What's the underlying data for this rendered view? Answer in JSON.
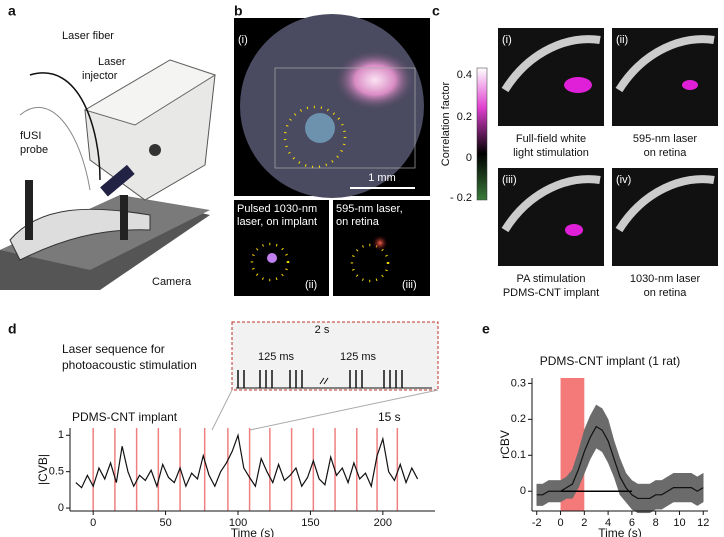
{
  "panel_letters": [
    "a",
    "b",
    "c",
    "d",
    "e"
  ],
  "panel_a": {
    "laser_fiber": "Laser fiber",
    "laser_injector": [
      "Laser",
      "injector"
    ],
    "fusi_probe": [
      "fUSI",
      "probe"
    ],
    "camera": "Camera"
  },
  "panel_b": {
    "i": "(i)",
    "ii": "(ii)",
    "iii": "(iii)",
    "scale": "1 mm",
    "ii_caption": [
      "Pulsed 1030-nm",
      "laser, on implant"
    ],
    "iii_caption": [
      "595-nm laser,",
      "on retina"
    ]
  },
  "panel_c": {
    "colorbar_label": "Correlation factor",
    "colorbar_ticks": [
      "0.4",
      "0.2",
      "0",
      "- 0.2"
    ],
    "images": [
      {
        "tag": "(i)",
        "caption": [
          "Full-field white",
          "light stimulation"
        ]
      },
      {
        "tag": "(ii)",
        "caption": [
          "595-nm laser",
          "on retina"
        ]
      },
      {
        "tag": "(iii)",
        "caption": [
          "PA stimulation",
          "PDMS-CNT implant"
        ]
      },
      {
        "tag": "(iv)",
        "caption": [
          "1030-nm laser",
          "on retina"
        ]
      }
    ]
  },
  "panel_d_inset": {
    "title": [
      "Laser sequence for",
      "photoacoustic stimulation"
    ],
    "gap": "2 s",
    "pulse1": "125 ms",
    "pulse2": "125 ms"
  },
  "chart_data": [
    {
      "type": "line",
      "annotation": "PDMS-CNT implant",
      "interval_label": "15 s",
      "xlabel": "Time (s)",
      "ylabel": "|CVB|",
      "x": [
        -12,
        -8,
        -4,
        0,
        4,
        8,
        12,
        16,
        20,
        24,
        28,
        32,
        36,
        40,
        44,
        48,
        52,
        56,
        60,
        64,
        68,
        72,
        76,
        80,
        84,
        88,
        92,
        96,
        100,
        104,
        108,
        112,
        116,
        120,
        124,
        128,
        132,
        136,
        140,
        144,
        148,
        152,
        156,
        160,
        164,
        168,
        172,
        176,
        180,
        184,
        188,
        192,
        196,
        200,
        204,
        208,
        212,
        216,
        220,
        224
      ],
      "values": [
        0.35,
        0.28,
        0.45,
        0.3,
        0.55,
        0.4,
        0.62,
        0.35,
        0.85,
        0.5,
        0.3,
        0.45,
        0.38,
        0.52,
        0.3,
        0.6,
        0.42,
        0.35,
        0.55,
        0.3,
        0.48,
        0.4,
        0.72,
        0.45,
        0.3,
        0.5,
        0.62,
        0.78,
        1.0,
        0.55,
        0.42,
        0.3,
        0.68,
        0.5,
        0.35,
        0.6,
        0.38,
        0.45,
        0.55,
        0.3,
        0.42,
        0.65,
        0.4,
        0.32,
        0.7,
        0.45,
        0.55,
        0.35,
        0.62,
        0.4,
        0.48,
        0.3,
        0.72,
        0.95,
        0.5,
        0.38,
        0.6,
        0.35,
        0.55,
        0.4
      ],
      "color": "#111111",
      "stim_x": [
        0,
        15,
        30,
        45,
        60,
        77,
        93,
        108,
        122,
        137,
        152,
        167,
        182,
        196,
        210
      ],
      "stim_color": "#f08080",
      "xlim": [
        -16,
        236
      ],
      "ylim": [
        -0.04,
        1.1
      ],
      "xticks": [
        0,
        50,
        100,
        150,
        200
      ],
      "yticks": [
        0,
        0.5,
        1
      ]
    },
    {
      "type": "line",
      "title": "PDMS-CNT implant (1 rat)",
      "xlabel": "Time (s)",
      "ylabel": "rCBV",
      "x": [
        -2,
        -1.5,
        -1,
        -0.5,
        0,
        0.5,
        1,
        1.5,
        2,
        2.5,
        3,
        3.5,
        4,
        4.5,
        5,
        5.5,
        6,
        6.5,
        7,
        7.5,
        8,
        8.5,
        9,
        9.5,
        10,
        10.5,
        11,
        11.5,
        12
      ],
      "values": [
        -0.01,
        -0.01,
        0,
        0,
        0,
        0.01,
        0.02,
        0.06,
        0.11,
        0.15,
        0.18,
        0.17,
        0.14,
        0.09,
        0.04,
        0.01,
        -0.01,
        -0.02,
        -0.02,
        -0.02,
        -0.01,
        -0.01,
        0,
        0.01,
        0.01,
        0.01,
        0.01,
        0,
        0.01
      ],
      "errors": [
        0.03,
        0.03,
        0.03,
        0.03,
        0.03,
        0.03,
        0.04,
        0.05,
        0.06,
        0.06,
        0.06,
        0.06,
        0.06,
        0.05,
        0.05,
        0.04,
        0.04,
        0.04,
        0.04,
        0.04,
        0.04,
        0.04,
        0.04,
        0.04,
        0.04,
        0.04,
        0.04,
        0.04,
        0.04
      ],
      "color": "#111111",
      "error_color": "#6b6b6b",
      "stim_span": [
        0,
        2
      ],
      "stim_color": "#f47a7a",
      "baseline_x": [
        0,
        6
      ],
      "baseline_y": 0,
      "xlim": [
        -2.4,
        12.4
      ],
      "ylim": [
        -0.055,
        0.315
      ],
      "xticks": [
        -2,
        0,
        2,
        4,
        6,
        8,
        10,
        12
      ],
      "yticks": [
        0,
        0.1,
        0.2,
        0.3
      ]
    }
  ]
}
